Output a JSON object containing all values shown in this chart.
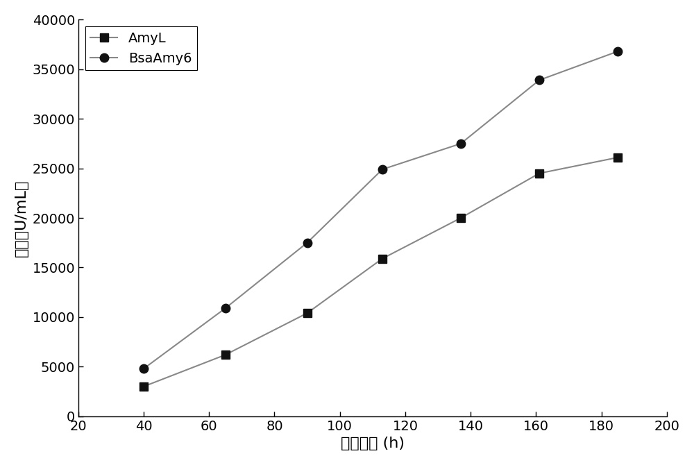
{
  "amyl_x": [
    40,
    65,
    90,
    113,
    137,
    161,
    185
  ],
  "amyl_y": [
    3000,
    6200,
    10400,
    15900,
    20000,
    24500,
    26100
  ],
  "bsaamy6_x": [
    40,
    65,
    90,
    113,
    137,
    161,
    185
  ],
  "bsaamy6_y": [
    4800,
    10900,
    17500,
    24900,
    27500,
    33900,
    36800
  ],
  "line_color": "#888888",
  "marker_color": "#111111",
  "xlabel": "发酵时间 (h)",
  "ylabel": "酶活（U/mL）",
  "xlim": [
    20,
    200
  ],
  "ylim": [
    0,
    40000
  ],
  "xticks": [
    20,
    40,
    60,
    80,
    100,
    120,
    140,
    160,
    180,
    200
  ],
  "yticks": [
    0,
    5000,
    10000,
    15000,
    20000,
    25000,
    30000,
    35000,
    40000
  ],
  "legend_amyl": "AmyL",
  "legend_bsaamy6": "BsaAmy6",
  "label_fontsize": 16,
  "tick_fontsize": 14,
  "legend_fontsize": 14,
  "marker_size": 9,
  "line_width": 1.5,
  "background_color": "#ffffff"
}
